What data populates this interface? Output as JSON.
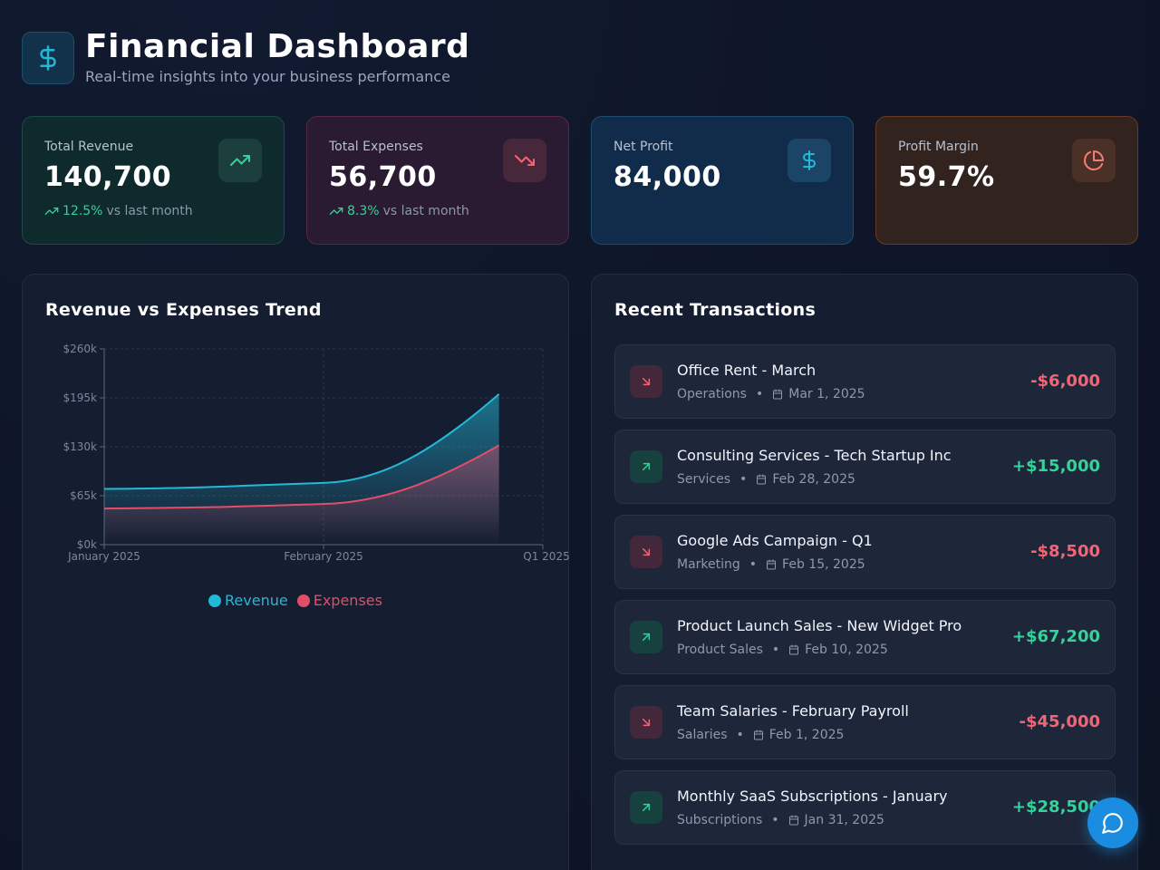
{
  "header": {
    "title": "Financial Dashboard",
    "subtitle": "Real-time insights into your business performance",
    "logo_icon": "dollar-icon"
  },
  "stats": {
    "revenue": {
      "label": "Total Revenue",
      "value": "140,700",
      "change": "12.5%",
      "change_suffix": "vs last month",
      "icon": "trending-up-icon"
    },
    "expenses": {
      "label": "Total Expenses",
      "value": "56,700",
      "change": "8.3%",
      "change_suffix": "vs last month",
      "icon": "trending-down-icon"
    },
    "profit": {
      "label": "Net Profit",
      "value": "84,000",
      "icon": "dollar-icon"
    },
    "margin": {
      "label": "Profit Margin",
      "value": "59.7%",
      "icon": "pie-chart-icon"
    }
  },
  "chart_panel": {
    "title": "Revenue vs Expenses Trend"
  },
  "chart_data": {
    "type": "area",
    "x": [
      "January 2025",
      "February 2025",
      "Q1 2025"
    ],
    "yticks": [
      "$0k",
      "$65k",
      "$130k",
      "$195k",
      "$260k"
    ],
    "ylim": [
      0,
      260000
    ],
    "grid": true,
    "legend_position": "bottom",
    "series": [
      {
        "name": "Revenue",
        "color": "#22b8d8",
        "points": [
          [
            0,
            74000
          ],
          [
            1,
            82000
          ],
          [
            1.8,
            200000
          ]
        ]
      },
      {
        "name": "Expenses",
        "color": "#e24d6a",
        "points": [
          [
            0,
            48000
          ],
          [
            1,
            54000
          ],
          [
            1.8,
            132000
          ]
        ]
      }
    ]
  },
  "transactions_panel": {
    "title": "Recent Transactions",
    "items": [
      {
        "title": "Office Rent - March",
        "category": "Operations",
        "date": "Mar 1, 2025",
        "amount": "-$6,000",
        "type": "out"
      },
      {
        "title": "Consulting Services - Tech Startup Inc",
        "category": "Services",
        "date": "Feb 28, 2025",
        "amount": "+$15,000",
        "type": "in"
      },
      {
        "title": "Google Ads Campaign - Q1",
        "category": "Marketing",
        "date": "Feb 15, 2025",
        "amount": "-$8,500",
        "type": "out"
      },
      {
        "title": "Product Launch Sales - New Widget Pro",
        "category": "Product Sales",
        "date": "Feb 10, 2025",
        "amount": "+$67,200",
        "type": "in"
      },
      {
        "title": "Team Salaries - February Payroll",
        "category": "Salaries",
        "date": "Feb 1, 2025",
        "amount": "-$45,000",
        "type": "out"
      },
      {
        "title": "Monthly SaaS Subscriptions - January",
        "category": "Subscriptions",
        "date": "Jan 31, 2025",
        "amount": "+$28,500",
        "type": "in"
      }
    ]
  },
  "chat_button": {
    "icon": "chat-bubble-icon"
  }
}
